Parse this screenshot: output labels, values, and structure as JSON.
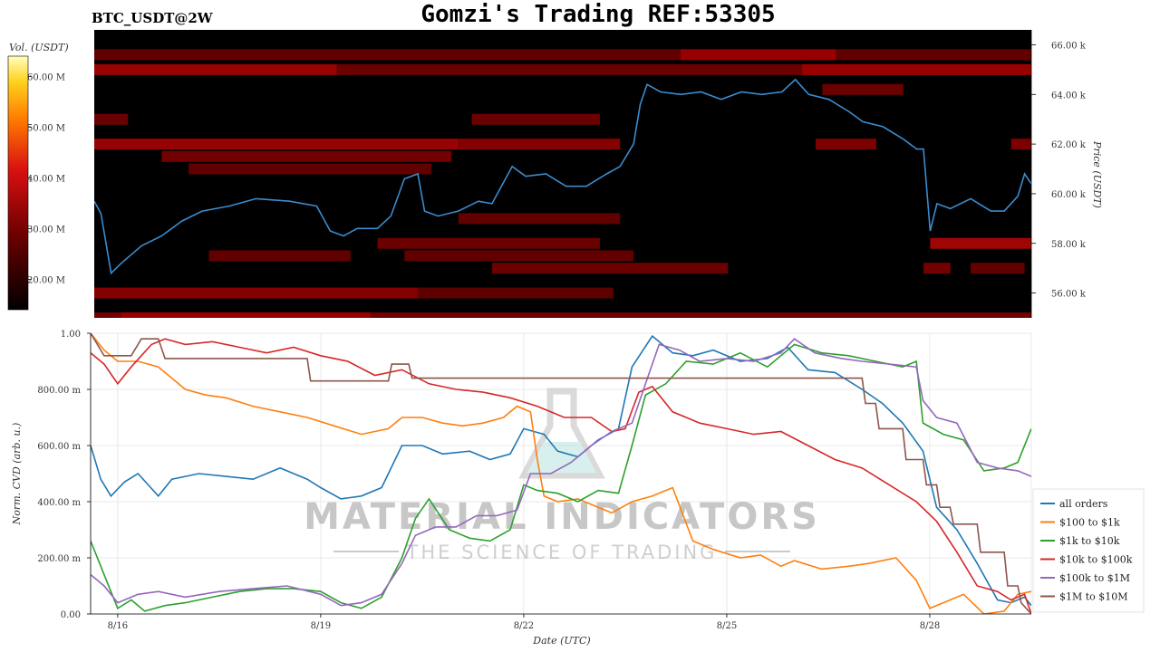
{
  "header": {
    "symbol": "BTC_USDT@2W",
    "title": "Gomzi's Trading REF:53305"
  },
  "watermark": {
    "brand": "MATERIAL INDICATORS",
    "tagline": "THE SCIENCE OF TRADING"
  },
  "colors": {
    "background": "#000000",
    "price_line": "#3a8ccf",
    "heat_low": "#300000",
    "heat_high": "#ffff80"
  },
  "chart_data": [
    {
      "type": "heatmap",
      "id": "orderbook-heatmap",
      "colorbar": {
        "label": "Vol. (USDT)",
        "ticks": [
          "20.00 M",
          "30.00 M",
          "40.00 M",
          "50.00 M",
          "60.00 M"
        ],
        "tick_values": [
          20,
          30,
          40,
          50,
          60
        ],
        "range": [
          14,
          64
        ]
      },
      "y_axis": {
        "label": "Price (USDT)",
        "ticks": [
          "56.00 k",
          "58.00 k",
          "60.00 k",
          "62.00 k",
          "64.00 k",
          "66.00 k"
        ],
        "tick_values": [
          56000,
          58000,
          60000,
          62000,
          64000,
          66000
        ],
        "range": [
          55000,
          66600
        ]
      },
      "x_range": [
        15.6,
        29.5
      ],
      "bands": [
        {
          "price": 65600,
          "x0": 15.6,
          "x1": 29.5,
          "intensity": 0.25
        },
        {
          "price": 65000,
          "x0": 15.6,
          "x1": 19.2,
          "intensity": 0.55
        },
        {
          "price": 65000,
          "x0": 19.2,
          "x1": 29.5,
          "intensity": 0.3
        },
        {
          "price": 65600,
          "x0": 24.3,
          "x1": 26.6,
          "intensity": 0.5
        },
        {
          "price": 65000,
          "x0": 26.1,
          "x1": 29.5,
          "intensity": 0.5
        },
        {
          "price": 64200,
          "x0": 26.4,
          "x1": 27.6,
          "intensity": 0.3
        },
        {
          "price": 63000,
          "x0": 15.6,
          "x1": 16.1,
          "intensity": 0.3
        },
        {
          "price": 63000,
          "x0": 21.2,
          "x1": 23.1,
          "intensity": 0.3
        },
        {
          "price": 62000,
          "x0": 15.6,
          "x1": 21.0,
          "intensity": 0.55
        },
        {
          "price": 62000,
          "x0": 21.0,
          "x1": 23.4,
          "intensity": 0.45
        },
        {
          "price": 62000,
          "x0": 26.3,
          "x1": 27.2,
          "intensity": 0.4
        },
        {
          "price": 62000,
          "x0": 29.2,
          "x1": 29.5,
          "intensity": 0.4
        },
        {
          "price": 61500,
          "x0": 16.6,
          "x1": 20.9,
          "intensity": 0.35
        },
        {
          "price": 61000,
          "x0": 17.0,
          "x1": 20.6,
          "intensity": 0.25
        },
        {
          "price": 59000,
          "x0": 21.0,
          "x1": 23.4,
          "intensity": 0.25
        },
        {
          "price": 58000,
          "x0": 19.8,
          "x1": 23.1,
          "intensity": 0.3
        },
        {
          "price": 58000,
          "x0": 28.0,
          "x1": 29.5,
          "intensity": 0.6
        },
        {
          "price": 57500,
          "x0": 17.3,
          "x1": 19.4,
          "intensity": 0.25
        },
        {
          "price": 57500,
          "x0": 20.2,
          "x1": 23.6,
          "intensity": 0.25
        },
        {
          "price": 57000,
          "x0": 21.5,
          "x1": 25.0,
          "intensity": 0.3
        },
        {
          "price": 57000,
          "x0": 27.9,
          "x1": 28.3,
          "intensity": 0.35
        },
        {
          "price": 57000,
          "x0": 28.6,
          "x1": 29.4,
          "intensity": 0.25
        },
        {
          "price": 56000,
          "x0": 15.6,
          "x1": 20.4,
          "intensity": 0.45
        },
        {
          "price": 56000,
          "x0": 20.4,
          "x1": 23.3,
          "intensity": 0.22
        },
        {
          "price": 55000,
          "x0": 15.6,
          "x1": 29.5,
          "intensity": 0.35
        },
        {
          "price": 55000,
          "x0": 16.0,
          "x1": 19.7,
          "intensity": 0.5
        }
      ],
      "price_series": {
        "x": [
          15.6,
          15.7,
          15.85,
          16.0,
          16.3,
          16.6,
          16.9,
          17.2,
          17.6,
          18.0,
          18.5,
          18.9,
          19.1,
          19.3,
          19.5,
          19.8,
          20.0,
          20.2,
          20.4,
          20.5,
          20.7,
          21.0,
          21.3,
          21.5,
          21.8,
          22.0,
          22.3,
          22.6,
          22.9,
          23.2,
          23.4,
          23.6,
          23.7,
          23.8,
          24.0,
          24.3,
          24.6,
          24.9,
          25.2,
          25.5,
          25.8,
          26.0,
          26.2,
          26.5,
          26.8,
          27.0,
          27.3,
          27.6,
          27.8,
          27.9,
          28.0,
          28.1,
          28.3,
          28.6,
          28.9,
          29.1,
          29.3,
          29.4,
          29.5
        ],
        "y": [
          59700,
          59200,
          56800,
          57200,
          57900,
          58300,
          58900,
          59300,
          59500,
          59800,
          59700,
          59500,
          58500,
          58300,
          58600,
          58600,
          59100,
          60600,
          60800,
          59300,
          59100,
          59300,
          59700,
          59600,
          61100,
          60700,
          60800,
          60300,
          60300,
          60800,
          61100,
          62000,
          63600,
          64400,
          64100,
          64000,
          64100,
          63800,
          64100,
          64000,
          64100,
          64600,
          64000,
          63800,
          63300,
          62900,
          62700,
          62200,
          61800,
          61800,
          58500,
          59600,
          59400,
          59800,
          59300,
          59300,
          59900,
          60800,
          60400
        ]
      },
      "x_ticks": [
        "8/16",
        "8/19",
        "8/22",
        "8/25",
        "8/28"
      ],
      "x_tick_values": [
        16,
        19,
        22,
        25,
        28
      ]
    },
    {
      "type": "line",
      "id": "cvd-lines",
      "xlabel": "Date (UTC)",
      "ylabel": "Norm. CVD (arb. u.)",
      "ylim": [
        0,
        1
      ],
      "xlim": [
        15.6,
        29.5
      ],
      "y_ticks": [
        "0.00",
        "200.00 m",
        "400.00 m",
        "600.00 m",
        "800.00 m",
        "1.00"
      ],
      "y_tick_values": [
        0,
        0.2,
        0.4,
        0.6,
        0.8,
        1.0
      ],
      "x_ticks": [
        "8/16",
        "8/19",
        "8/22",
        "8/25",
        "8/28"
      ],
      "x_tick_values": [
        16,
        19,
        22,
        25,
        28
      ],
      "legend_position": "bottom-right",
      "series": [
        {
          "name": "all orders",
          "color": "#1f77b4",
          "x": [
            15.6,
            15.75,
            15.9,
            16.1,
            16.3,
            16.6,
            16.8,
            17.2,
            17.6,
            18.0,
            18.4,
            18.8,
            19.0,
            19.3,
            19.6,
            19.9,
            20.2,
            20.5,
            20.8,
            21.2,
            21.5,
            21.8,
            22.0,
            22.3,
            22.5,
            22.8,
            23.1,
            23.4,
            23.6,
            23.9,
            24.2,
            24.5,
            24.8,
            25.2,
            25.6,
            25.9,
            26.2,
            26.6,
            27.0,
            27.3,
            27.6,
            27.9,
            28.1,
            28.4,
            28.7,
            29.0,
            29.2,
            29.4,
            29.5
          ],
          "y": [
            0.6,
            0.48,
            0.42,
            0.47,
            0.5,
            0.42,
            0.48,
            0.5,
            0.49,
            0.48,
            0.52,
            0.48,
            0.45,
            0.41,
            0.42,
            0.45,
            0.6,
            0.6,
            0.57,
            0.58,
            0.55,
            0.57,
            0.66,
            0.64,
            0.58,
            0.56,
            0.62,
            0.66,
            0.88,
            0.99,
            0.93,
            0.92,
            0.94,
            0.9,
            0.91,
            0.95,
            0.87,
            0.86,
            0.8,
            0.75,
            0.68,
            0.58,
            0.38,
            0.3,
            0.18,
            0.05,
            0.04,
            0.06,
            0.03
          ]
        },
        {
          "name": "$100 to $1k",
          "color": "#ff7f0e",
          "x": [
            15.6,
            15.8,
            16.0,
            16.3,
            16.6,
            16.8,
            17.0,
            17.3,
            17.6,
            18.0,
            18.4,
            18.8,
            19.2,
            19.6,
            20.0,
            20.2,
            20.5,
            20.8,
            21.1,
            21.4,
            21.7,
            21.9,
            22.1,
            22.2,
            22.3,
            22.5,
            22.8,
            23.0,
            23.3,
            23.6,
            23.9,
            24.2,
            24.5,
            24.8,
            25.2,
            25.5,
            25.8,
            26.0,
            26.4,
            26.8,
            27.1,
            27.5,
            27.8,
            28.0,
            28.2,
            28.5,
            28.8,
            29.1,
            29.3,
            29.5
          ],
          "y": [
            1.0,
            0.94,
            0.9,
            0.9,
            0.88,
            0.84,
            0.8,
            0.78,
            0.77,
            0.74,
            0.72,
            0.7,
            0.67,
            0.64,
            0.66,
            0.7,
            0.7,
            0.68,
            0.67,
            0.68,
            0.7,
            0.74,
            0.72,
            0.55,
            0.42,
            0.4,
            0.41,
            0.39,
            0.36,
            0.4,
            0.42,
            0.45,
            0.26,
            0.23,
            0.2,
            0.21,
            0.17,
            0.19,
            0.16,
            0.17,
            0.18,
            0.2,
            0.12,
            0.02,
            0.04,
            0.07,
            0.0,
            0.01,
            0.07,
            0.08
          ]
        },
        {
          "name": "$1k to $10k",
          "color": "#2ca02c",
          "x": [
            15.6,
            15.8,
            16.0,
            16.2,
            16.4,
            16.7,
            17.0,
            17.4,
            17.8,
            18.2,
            18.6,
            19.0,
            19.3,
            19.6,
            19.9,
            20.2,
            20.4,
            20.6,
            20.9,
            21.2,
            21.5,
            21.8,
            22.0,
            22.2,
            22.5,
            22.8,
            23.1,
            23.4,
            23.6,
            23.8,
            24.1,
            24.4,
            24.8,
            25.2,
            25.6,
            26.0,
            26.4,
            26.8,
            27.2,
            27.6,
            27.8,
            27.9,
            28.2,
            28.5,
            28.8,
            29.1,
            29.3,
            29.5
          ],
          "y": [
            0.26,
            0.14,
            0.02,
            0.05,
            0.01,
            0.03,
            0.04,
            0.06,
            0.08,
            0.09,
            0.09,
            0.08,
            0.04,
            0.02,
            0.06,
            0.2,
            0.34,
            0.41,
            0.3,
            0.27,
            0.26,
            0.3,
            0.46,
            0.44,
            0.43,
            0.4,
            0.44,
            0.43,
            0.6,
            0.78,
            0.82,
            0.9,
            0.89,
            0.93,
            0.88,
            0.96,
            0.93,
            0.92,
            0.9,
            0.88,
            0.9,
            0.68,
            0.64,
            0.62,
            0.51,
            0.52,
            0.54,
            0.66
          ]
        },
        {
          "name": "$10k to $100k",
          "color": "#d62728",
          "x": [
            15.6,
            15.8,
            16.0,
            16.2,
            16.5,
            16.7,
            17.0,
            17.4,
            17.8,
            18.2,
            18.6,
            19.0,
            19.4,
            19.8,
            20.2,
            20.6,
            21.0,
            21.4,
            21.8,
            22.2,
            22.6,
            23.0,
            23.3,
            23.5,
            23.7,
            23.9,
            24.2,
            24.6,
            25.0,
            25.4,
            25.8,
            26.2,
            26.6,
            27.0,
            27.4,
            27.8,
            28.1,
            28.4,
            28.7,
            29.0,
            29.2,
            29.4,
            29.5
          ],
          "y": [
            0.93,
            0.89,
            0.82,
            0.88,
            0.96,
            0.98,
            0.96,
            0.97,
            0.95,
            0.93,
            0.95,
            0.92,
            0.9,
            0.85,
            0.87,
            0.82,
            0.8,
            0.79,
            0.77,
            0.74,
            0.7,
            0.7,
            0.65,
            0.66,
            0.79,
            0.81,
            0.72,
            0.68,
            0.66,
            0.64,
            0.65,
            0.6,
            0.55,
            0.52,
            0.46,
            0.4,
            0.33,
            0.22,
            0.1,
            0.08,
            0.05,
            0.07,
            0.0
          ]
        },
        {
          "name": "$100k to $1M",
          "color": "#9467bd",
          "x": [
            15.6,
            15.8,
            16.0,
            16.3,
            16.6,
            17.0,
            17.5,
            18.0,
            18.5,
            19.0,
            19.3,
            19.6,
            19.9,
            20.2,
            20.4,
            20.7,
            21.0,
            21.3,
            21.6,
            21.9,
            22.1,
            22.4,
            22.7,
            23.0,
            23.3,
            23.6,
            23.8,
            24.0,
            24.3,
            24.6,
            25.0,
            25.4,
            25.8,
            26.0,
            26.3,
            26.7,
            27.0,
            27.4,
            27.8,
            27.9,
            28.1,
            28.4,
            28.7,
            29.0,
            29.3,
            29.5
          ],
          "y": [
            0.14,
            0.1,
            0.04,
            0.07,
            0.08,
            0.06,
            0.08,
            0.09,
            0.1,
            0.07,
            0.03,
            0.04,
            0.07,
            0.18,
            0.28,
            0.31,
            0.31,
            0.35,
            0.35,
            0.37,
            0.5,
            0.5,
            0.54,
            0.6,
            0.65,
            0.68,
            0.82,
            0.96,
            0.94,
            0.9,
            0.91,
            0.9,
            0.93,
            0.98,
            0.93,
            0.91,
            0.9,
            0.89,
            0.88,
            0.76,
            0.7,
            0.68,
            0.54,
            0.52,
            0.51,
            0.49
          ]
        },
        {
          "name": "$1M to $10M",
          "color": "#8c564b",
          "x": [
            15.6,
            15.8,
            16.0,
            16.2,
            16.35,
            16.6,
            16.7,
            18.8,
            18.85,
            20.0,
            20.05,
            20.3,
            20.35,
            25.0,
            27.0,
            27.05,
            27.2,
            27.25,
            27.6,
            27.65,
            27.9,
            27.95,
            28.1,
            28.15,
            28.3,
            28.35,
            28.7,
            28.75,
            29.1,
            29.15,
            29.3,
            29.35,
            29.5
          ],
          "y": [
            1.0,
            0.92,
            0.92,
            0.92,
            0.98,
            0.98,
            0.91,
            0.91,
            0.83,
            0.83,
            0.89,
            0.89,
            0.84,
            0.84,
            0.84,
            0.75,
            0.75,
            0.66,
            0.66,
            0.55,
            0.55,
            0.46,
            0.46,
            0.38,
            0.38,
            0.32,
            0.32,
            0.22,
            0.22,
            0.1,
            0.1,
            0.04,
            0.0
          ]
        }
      ]
    }
  ]
}
